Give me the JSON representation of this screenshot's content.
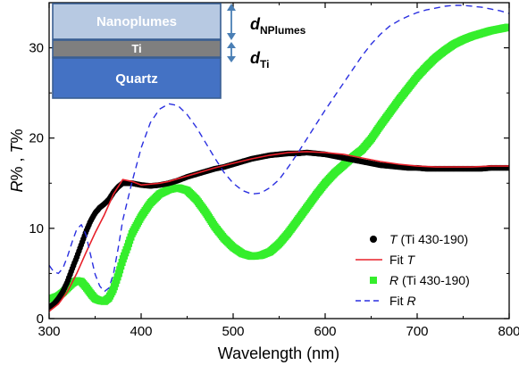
{
  "chart_data": {
    "type": "line",
    "xlabel": "Wavelength (nm)",
    "ylabel_parts": [
      "R",
      "% , ",
      "T",
      "%"
    ],
    "xlim": [
      300,
      800
    ],
    "ylim": [
      0,
      35
    ],
    "x_ticks": [
      300,
      400,
      500,
      600,
      700,
      800
    ],
    "y_ticks": [
      0,
      10,
      20,
      30
    ],
    "grid": false,
    "legend_position": "bottom-right",
    "series": [
      {
        "name_italic": "T",
        "name_rest": " (Ti 430-190)",
        "style": "markers",
        "color": "#000000",
        "x": [
          300,
          305,
          310,
          315,
          320,
          325,
          330,
          335,
          340,
          345,
          350,
          355,
          360,
          365,
          370,
          375,
          380,
          390,
          400,
          410,
          420,
          430,
          440,
          450,
          460,
          470,
          480,
          490,
          500,
          510,
          520,
          530,
          540,
          550,
          560,
          570,
          580,
          590,
          600,
          610,
          620,
          630,
          640,
          650,
          660,
          670,
          680,
          690,
          700,
          710,
          720,
          730,
          740,
          750,
          760,
          770,
          780,
          790,
          800
        ],
        "y": [
          1.3,
          1.6,
          2.2,
          3.0,
          4.1,
          5.5,
          6.8,
          8.2,
          9.6,
          10.8,
          11.7,
          12.3,
          12.7,
          13.2,
          14.0,
          14.6,
          15.0,
          15.0,
          14.8,
          14.7,
          14.8,
          15.0,
          15.3,
          15.7,
          16.0,
          16.3,
          16.6,
          16.8,
          17.1,
          17.4,
          17.7,
          17.9,
          18.1,
          18.2,
          18.3,
          18.3,
          18.4,
          18.3,
          18.2,
          18.0,
          17.8,
          17.6,
          17.4,
          17.2,
          17.0,
          16.9,
          16.8,
          16.7,
          16.7,
          16.6,
          16.6,
          16.6,
          16.6,
          16.6,
          16.6,
          16.6,
          16.7,
          16.7,
          16.7
        ]
      },
      {
        "name_italic": "T",
        "name_prefix": "Fit ",
        "style": "line",
        "color": "#e8202a",
        "x": [
          300,
          310,
          320,
          330,
          340,
          350,
          360,
          370,
          380,
          390,
          400,
          410,
          420,
          430,
          440,
          450,
          460,
          480,
          500,
          520,
          540,
          560,
          580,
          600,
          620,
          640,
          660,
          680,
          700,
          720,
          740,
          760,
          780,
          800
        ],
        "y": [
          0.8,
          1.6,
          3.0,
          5.0,
          7.3,
          9.5,
          11.5,
          13.8,
          15.4,
          15.2,
          14.8,
          14.9,
          15.0,
          15.2,
          15.5,
          15.8,
          16.1,
          16.7,
          17.2,
          17.7,
          18.1,
          18.4,
          18.5,
          18.4,
          18.2,
          17.8,
          17.4,
          17.1,
          16.9,
          16.8,
          16.8,
          16.8,
          16.9,
          16.9
        ]
      },
      {
        "name_italic": "R",
        "name_rest": " (Ti 430-190)",
        "style": "markers",
        "color": "#35ee2c",
        "x": [
          300,
          305,
          310,
          315,
          320,
          325,
          330,
          335,
          340,
          345,
          350,
          355,
          360,
          365,
          370,
          375,
          380,
          385,
          390,
          400,
          410,
          420,
          430,
          440,
          450,
          460,
          470,
          480,
          490,
          500,
          510,
          520,
          530,
          540,
          550,
          560,
          570,
          580,
          590,
          600,
          610,
          620,
          630,
          640,
          650,
          660,
          670,
          680,
          690,
          700,
          710,
          720,
          730,
          740,
          750,
          760,
          770,
          780,
          790,
          800
        ],
        "y": [
          2.2,
          2.3,
          2.5,
          2.9,
          3.4,
          3.9,
          4.2,
          4.1,
          3.5,
          2.8,
          2.2,
          2.0,
          1.9,
          2.3,
          3.3,
          4.8,
          6.5,
          7.9,
          9.4,
          11.3,
          12.8,
          13.8,
          14.3,
          14.5,
          14.2,
          13.2,
          11.8,
          10.2,
          8.9,
          7.9,
          7.2,
          6.9,
          7.0,
          7.4,
          8.3,
          9.5,
          10.9,
          12.3,
          13.7,
          15.0,
          16.1,
          17.0,
          17.9,
          18.7,
          19.9,
          21.4,
          22.8,
          24.2,
          25.5,
          26.8,
          27.9,
          28.9,
          29.7,
          30.4,
          30.9,
          31.3,
          31.6,
          31.9,
          32.1,
          32.3
        ]
      },
      {
        "name_italic": "R",
        "name_prefix": "Fit ",
        "style": "dashed",
        "color": "#2a2fe0",
        "x": [
          300,
          305,
          310,
          315,
          320,
          325,
          330,
          335,
          340,
          345,
          350,
          355,
          360,
          365,
          370,
          375,
          380,
          390,
          400,
          410,
          420,
          430,
          440,
          450,
          460,
          470,
          480,
          490,
          500,
          510,
          520,
          530,
          540,
          550,
          560,
          570,
          580,
          590,
          600,
          610,
          620,
          630,
          640,
          650,
          660,
          670,
          680,
          690,
          700,
          710,
          720,
          730,
          740,
          750,
          760,
          770,
          780,
          790,
          800
        ],
        "y": [
          5.9,
          5.2,
          5.0,
          5.6,
          6.9,
          8.5,
          9.9,
          10.4,
          9.3,
          7.1,
          4.9,
          3.6,
          3.0,
          3.4,
          5.0,
          7.8,
          10.9,
          15.1,
          18.9,
          21.7,
          23.2,
          23.8,
          23.6,
          22.6,
          21.2,
          19.5,
          17.8,
          16.2,
          15.0,
          14.2,
          13.8,
          13.9,
          14.5,
          15.4,
          16.8,
          18.3,
          19.9,
          21.5,
          23.1,
          24.6,
          26.1,
          27.6,
          29.1,
          30.4,
          31.5,
          32.4,
          33.0,
          33.5,
          33.9,
          34.2,
          34.4,
          34.6,
          34.7,
          34.7,
          34.6,
          34.5,
          34.3,
          34.1,
          33.8
        ]
      }
    ]
  },
  "inset": {
    "layers": [
      {
        "label": "Nanoplumes",
        "color": "#b7c9e2"
      },
      {
        "label": "Ti",
        "color": "#7f7f7f"
      },
      {
        "label": "Quartz",
        "color": "#4472c4"
      }
    ],
    "arrow_color": "#4a7fb5",
    "dim_nplumes": {
      "symbol": "d",
      "subscript": "NPlumes"
    },
    "dim_ti": {
      "symbol": "d",
      "subscript": "Ti"
    }
  }
}
